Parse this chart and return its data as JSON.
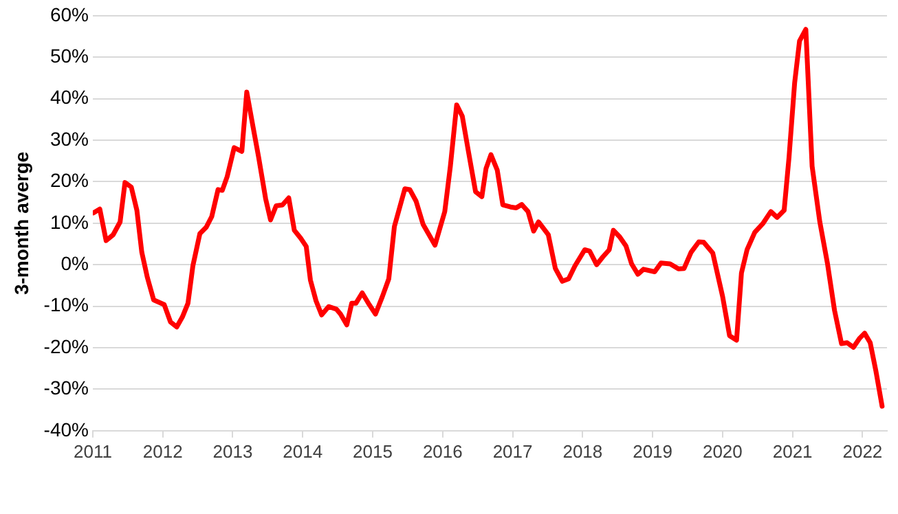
{
  "chart_data": {
    "type": "line",
    "ylabel": "3-month averge",
    "x": [
      2011.01,
      2011.1,
      2011.19,
      2011.29,
      2011.39,
      2011.46,
      2011.55,
      2011.63,
      2011.7,
      2011.78,
      2011.87,
      2012.02,
      2012.11,
      2012.2,
      2012.28,
      2012.36,
      2012.43,
      2012.53,
      2012.62,
      2012.7,
      2012.79,
      2012.85,
      2012.92,
      2013.02,
      2013.13,
      2013.2,
      2013.29,
      2013.37,
      2013.47,
      2013.54,
      2013.62,
      2013.71,
      2013.8,
      2013.88,
      2013.97,
      2014.05,
      2014.11,
      2014.19,
      2014.27,
      2014.37,
      2014.48,
      2014.54,
      2014.63,
      2014.7,
      2014.76,
      2014.85,
      2014.95,
      2015.04,
      2015.14,
      2015.23,
      2015.31,
      2015.46,
      2015.53,
      2015.62,
      2015.72,
      2015.89,
      2016.03,
      2016.11,
      2016.2,
      2016.28,
      2016.37,
      2016.47,
      2016.56,
      2016.62,
      2016.69,
      2016.78,
      2016.86,
      2016.97,
      2017.05,
      2017.13,
      2017.22,
      2017.3,
      2017.37,
      2017.51,
      2017.61,
      2017.71,
      2017.8,
      2017.89,
      2018.03,
      2018.1,
      2018.2,
      2018.29,
      2018.38,
      2018.44,
      2018.53,
      2018.62,
      2018.7,
      2018.79,
      2018.87,
      2019.03,
      2019.12,
      2019.25,
      2019.37,
      2019.45,
      2019.55,
      2019.66,
      2019.73,
      2019.86,
      2020.0,
      2020.1,
      2020.2,
      2020.27,
      2020.35,
      2020.46,
      2020.58,
      2020.69,
      2020.78,
      2020.88,
      2020.95,
      2021.03,
      2021.1,
      2021.19,
      2021.28,
      2021.39,
      2021.5,
      2021.6,
      2021.7,
      2021.78,
      2021.87,
      2021.96,
      2022.03,
      2022.11,
      2022.19,
      2022.28
    ],
    "series": [
      {
        "color": "#ff0000",
        "values": [
          12.5,
          13.4,
          5.8,
          7.2,
          10.3,
          19.8,
          18.7,
          13.1,
          3,
          -3.1,
          -8.5,
          -9.6,
          -13.8,
          -15,
          -12.6,
          -9.3,
          -0.3,
          7.5,
          9,
          11.6,
          18.1,
          17.9,
          21.2,
          28.2,
          27.3,
          41.6,
          33.2,
          25.9,
          15.9,
          10.8,
          14.2,
          14.4,
          16.1,
          8.3,
          6.4,
          4.4,
          -3.7,
          -8.7,
          -12.1,
          -10.1,
          -10.7,
          -11.9,
          -14.5,
          -9.3,
          -9.3,
          -6.8,
          -9.6,
          -11.9,
          -7.6,
          -3.4,
          9.2,
          18.3,
          18.1,
          15.3,
          9.7,
          4.7,
          12.8,
          23.7,
          38.5,
          35.8,
          27.1,
          17.6,
          16.4,
          23.2,
          26.5,
          22.8,
          14.4,
          13.9,
          13.7,
          14.5,
          12.8,
          8.1,
          10.3,
          7.2,
          -0.9,
          -4,
          -3.4,
          -0.3,
          3.6,
          3.3,
          0,
          1.9,
          3.6,
          8.3,
          6.7,
          4.5,
          0.2,
          -2.3,
          -1.1,
          -1.7,
          0.4,
          0.2,
          -1,
          -0.9,
          3,
          5.5,
          5.4,
          2.8,
          -7.6,
          -17.1,
          -18.2,
          -2,
          3.6,
          7.8,
          10,
          12.8,
          11.4,
          13.1,
          25.9,
          43.8,
          53.9,
          56.7,
          23.7,
          10.3,
          0.2,
          -11,
          -19,
          -18.8,
          -19.9,
          -17.7,
          -16.5,
          -18.8,
          -25.5,
          -34.1
        ]
      }
    ],
    "xlim": [
      2011,
      2022.35
    ],
    "xticks": [
      2011,
      2012,
      2013,
      2014,
      2015,
      2016,
      2017,
      2018,
      2019,
      2020,
      2021,
      2022
    ],
    "ylim": [
      -40,
      60
    ],
    "yticks": [
      {
        "value": -40,
        "label": "-40%"
      },
      {
        "value": -30,
        "label": "-30%"
      },
      {
        "value": -20,
        "label": "-20%"
      },
      {
        "value": -10,
        "label": "-10%"
      },
      {
        "value": 0,
        "label": "0%"
      },
      {
        "value": 10,
        "label": "10%"
      },
      {
        "value": 20,
        "label": "20%"
      },
      {
        "value": 30,
        "label": "30%"
      },
      {
        "value": 40,
        "label": "40%"
      },
      {
        "value": 50,
        "label": "50%"
      },
      {
        "value": 60,
        "label": "60%"
      }
    ],
    "grid": "y",
    "legend": false,
    "marker": "none",
    "line_style": "solid"
  }
}
